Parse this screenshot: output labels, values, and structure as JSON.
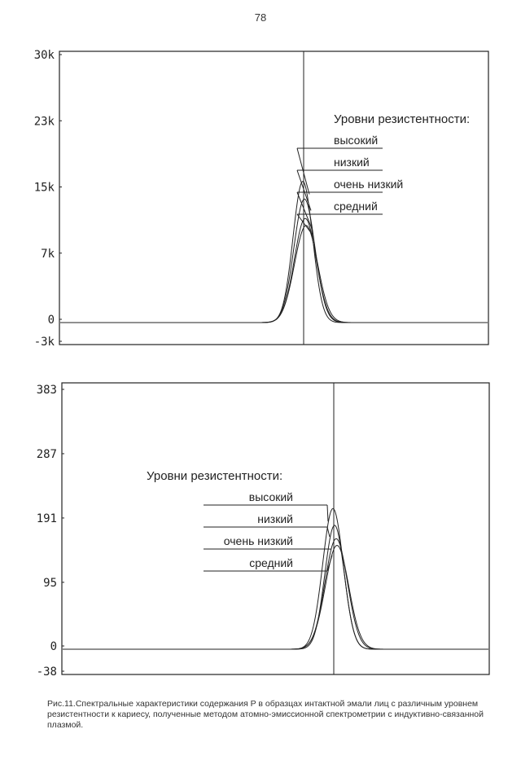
{
  "page_number": "78",
  "caption": "Рис.11.Спектральные характеристики содержания P в образцах интактной эмали лиц с различным уровнем резистентности к кариесу, полученные методом атомно-эмиссионной спектрометрии с индуктивно-связанной плазмой.",
  "chart_data": [
    {
      "type": "line",
      "title": "",
      "xlabel": "",
      "ylabel": "",
      "ylim": [
        -3000,
        30000
      ],
      "y_tick_labels": [
        "30k",
        "23k",
        "15k",
        "7k",
        "0",
        "-3k"
      ],
      "y_ticks": [
        30000,
        22500,
        15000,
        7500,
        0,
        -3000
      ],
      "grid": false,
      "legend_placement": "top-right",
      "legend_title": "Уровни резистентности:",
      "legend_items": [
        "высокий",
        "низкий",
        "очень низкий",
        "средний"
      ],
      "series": [
        {
          "name": "высокий",
          "center": 0,
          "peak": 16000,
          "width": 1
        },
        {
          "name": "низкий",
          "center": 0,
          "peak": 14000,
          "width": 1
        },
        {
          "name": "очень низкий",
          "center": 0,
          "peak": 11800,
          "width": 1
        },
        {
          "name": "средний",
          "center": 0,
          "peak": 11000,
          "width": 1
        }
      ]
    },
    {
      "type": "line",
      "title": "",
      "xlabel": "",
      "ylabel": "",
      "ylim": [
        -38,
        383
      ],
      "y_tick_labels": [
        "383",
        "287",
        "191",
        "95",
        "0",
        "-38"
      ],
      "y_ticks": [
        383,
        287,
        191,
        95,
        0,
        -38
      ],
      "grid": false,
      "legend_placement": "left-center",
      "legend_title": "Уровни резистентности:",
      "legend_items": [
        "высокий",
        "низкий",
        "очень низкий",
        "средний"
      ],
      "series": [
        {
          "name": "высокий",
          "center": 0,
          "peak": 210,
          "width": 1
        },
        {
          "name": "низкий",
          "center": 0,
          "peak": 185,
          "width": 1
        },
        {
          "name": "очень низкий",
          "center": 0,
          "peak": 165,
          "width": 1
        },
        {
          "name": "средний",
          "center": 0,
          "peak": 155,
          "width": 1
        }
      ]
    }
  ]
}
